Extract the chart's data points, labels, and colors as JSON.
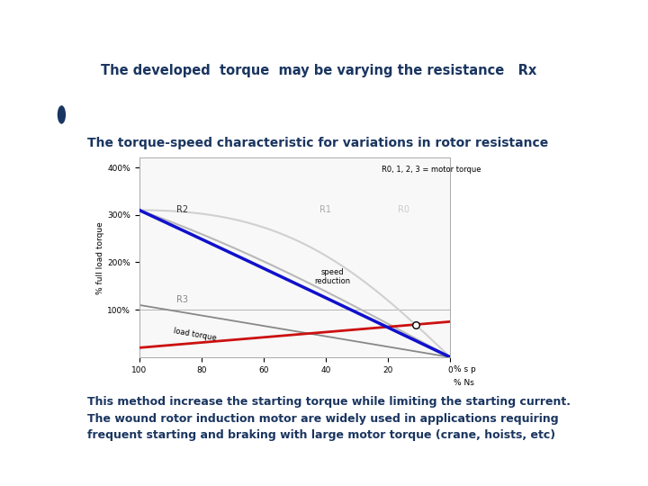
{
  "title1": "The developed  torque  may be varying the resistance   Rx",
  "title2": "The torque-speed characteristic for variations in rotor resistance",
  "footer": "This method increase the starting torque while limiting the starting current.\nThe wound rotor induction motor are widely used in applications requiring\nfrequent starting and braking with large motor torque (crane, hoists, etc)",
  "bg_color": "#ffffff",
  "green_panel_color": "#8fbc8b",
  "blue_bar_color": "#1a3560",
  "title_color": "#1a3560",
  "footer_color": "#1a3560",
  "curve_R2_color": "#1010cc",
  "load_torque_color": "#cc1010",
  "ylabel": "% full load torque",
  "xlabel_top": "% s p",
  "xlabel_bot": "% Ns",
  "yticks": [
    "100%",
    "200%",
    "300%",
    "400%"
  ],
  "ytick_vals": [
    100,
    200,
    300,
    400
  ],
  "annotation_legend": "R0, 1, 2, 3 = motor torque",
  "annotation_R2": "R2",
  "annotation_R1": "R1",
  "annotation_R0": "R0",
  "annotation_R3": "R3",
  "annotation_speed": "speed\nreduction",
  "annotation_load": "load torque"
}
